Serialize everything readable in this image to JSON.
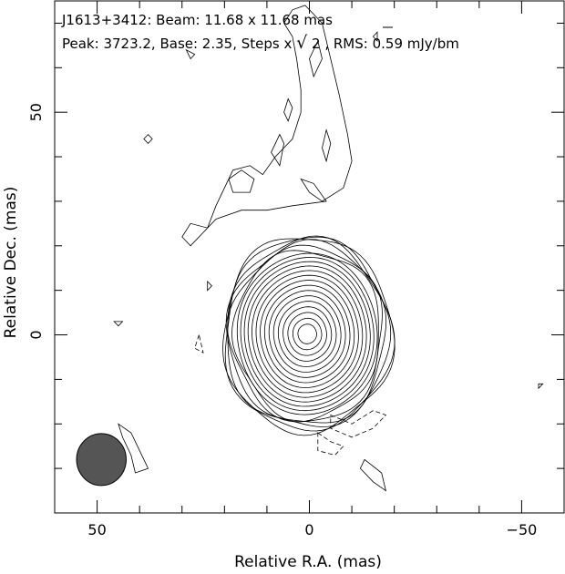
{
  "chart_data": {
    "type": "contour",
    "title_line1": "J1613+3412: Beam: 11.68 x 11.68 mas",
    "title_line2_prefix": "Peak: 3723.2, Base: 2.35, Steps x ",
    "title_line2_sqrt": "2",
    "title_line2_suffix": ", RMS: 0.59 mJy/bm",
    "xlabel": "Relative R.A. (mas)",
    "ylabel": "Relative Dec. (mas)",
    "xlim": [
      60,
      -60
    ],
    "ylim": [
      -40,
      75
    ],
    "xticks": [
      {
        "value": 50,
        "label": "50"
      },
      {
        "value": 0,
        "label": "0"
      },
      {
        "value": -50,
        "label": "−50"
      }
    ],
    "yticks": [
      {
        "value": 50,
        "label": "50"
      },
      {
        "value": 0,
        "label": "0"
      }
    ],
    "x_minor_step": 10,
    "y_minor_step": 10,
    "peak": 3723.2,
    "base_contour": 2.35,
    "contour_step_factor": "sqrt(2)",
    "rms": 0.59,
    "rms_unit": "mJy/bm",
    "beam": {
      "major_mas": 11.68,
      "minor_mas": 11.68,
      "center": [
        49,
        -28
      ],
      "fill": "#555555"
    },
    "core": {
      "center": [
        0.5,
        0.2
      ],
      "outer_radius_x": 20.0,
      "outer_radius_y": 22.0,
      "inner_radius": 2.2,
      "n_contours": 21
    },
    "jet": {
      "outer_contour": [
        [
          30,
          22
        ],
        [
          28,
          25
        ],
        [
          24,
          24
        ],
        [
          22,
          29
        ],
        [
          20,
          33
        ],
        [
          18,
          37
        ],
        [
          14,
          38
        ],
        [
          11,
          36
        ],
        [
          8,
          40
        ],
        [
          4,
          44
        ],
        [
          2,
          50
        ],
        [
          2,
          55
        ],
        [
          3,
          62
        ],
        [
          4,
          67
        ],
        [
          6,
          70
        ],
        [
          4,
          73
        ],
        [
          1,
          74
        ],
        [
          -3,
          70
        ],
        [
          -5,
          62
        ],
        [
          -7,
          54
        ],
        [
          -9,
          45
        ],
        [
          -10,
          39
        ],
        [
          -8,
          33
        ],
        [
          -3,
          30
        ],
        [
          0,
          32
        ],
        [
          2,
          35
        ],
        [
          -1,
          34
        ],
        [
          -4,
          30
        ],
        [
          4,
          29
        ],
        [
          10,
          28
        ],
        [
          16,
          28
        ],
        [
          22,
          26
        ],
        [
          28,
          20
        ],
        [
          30,
          22
        ]
      ],
      "inner_contours": [
        [
          [
            19,
            35
          ],
          [
            16,
            37
          ],
          [
            13,
            35
          ],
          [
            14,
            32
          ],
          [
            18,
            32
          ],
          [
            19,
            35
          ]
        ],
        [
          [
            9,
            41
          ],
          [
            7,
            45
          ],
          [
            6,
            43
          ],
          [
            7,
            38
          ],
          [
            9,
            41
          ]
        ],
        [
          [
            0,
            62
          ],
          [
            -2,
            66
          ],
          [
            -3,
            62
          ],
          [
            -1,
            58
          ],
          [
            0,
            62
          ]
        ],
        [
          [
            -3,
            42
          ],
          [
            -4,
            46
          ],
          [
            -5,
            43
          ],
          [
            -4,
            39
          ],
          [
            -3,
            42
          ]
        ],
        [
          [
            6,
            50
          ],
          [
            5,
            53
          ],
          [
            4,
            51
          ],
          [
            5,
            48
          ],
          [
            6,
            50
          ]
        ]
      ]
    },
    "negative_contours": [
      [
        [
          -5,
          -18
        ],
        [
          -10,
          -20
        ],
        [
          -15,
          -17
        ],
        [
          -18,
          -18
        ],
        [
          -15,
          -21
        ],
        [
          -10,
          -23
        ],
        [
          -5,
          -21
        ],
        [
          -5,
          -18
        ]
      ],
      [
        [
          -2,
          -22
        ],
        [
          -5,
          -24
        ],
        [
          -8,
          -25
        ],
        [
          -6,
          -27
        ],
        [
          -2,
          -26
        ],
        [
          -2,
          -22
        ]
      ],
      [
        [
          26,
          0
        ],
        [
          27,
          -3
        ],
        [
          25,
          -4
        ],
        [
          26,
          0
        ]
      ]
    ],
    "noise_contours": [
      [
        [
          28,
          62
        ],
        [
          29,
          64
        ],
        [
          27,
          63
        ],
        [
          28,
          62
        ]
      ],
      [
        [
          38,
          45
        ],
        [
          39,
          44
        ],
        [
          38,
          43
        ],
        [
          37,
          44
        ],
        [
          38,
          45
        ]
      ],
      [
        [
          45,
          2
        ],
        [
          46,
          3
        ],
        [
          44,
          3
        ],
        [
          45,
          2
        ]
      ],
      [
        [
          24,
          10
        ],
        [
          23,
          11
        ],
        [
          24,
          12
        ],
        [
          24,
          10
        ]
      ],
      [
        [
          -54,
          -12
        ],
        [
          -55,
          -11
        ],
        [
          -54,
          -11
        ],
        [
          -54,
          -12
        ]
      ],
      [
        [
          -12,
          -30
        ],
        [
          -15,
          -33
        ],
        [
          -18,
          -35
        ],
        [
          -17,
          -31
        ],
        [
          -13,
          -28
        ],
        [
          -12,
          -30
        ]
      ],
      [
        [
          45,
          -20
        ],
        [
          42,
          -22
        ],
        [
          40,
          -26
        ],
        [
          38,
          -30
        ],
        [
          41,
          -31
        ],
        [
          42,
          -27
        ],
        [
          44,
          -23
        ],
        [
          45,
          -20
        ]
      ],
      [
        [
          -15,
          67
        ],
        [
          -16,
          68
        ],
        [
          -16,
          66
        ],
        [
          -15,
          67
        ]
      ]
    ]
  }
}
